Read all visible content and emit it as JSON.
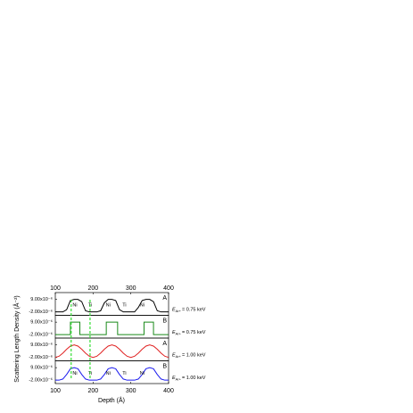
{
  "chart_data": {
    "type": "line",
    "xlabel": "Depth (Å)",
    "ylabel": "Scattering Length Density (Å⁻²)",
    "xlim": [
      100,
      400
    ],
    "xticks": [
      100,
      200,
      300,
      400
    ],
    "vlines": {
      "color": "#33dd33",
      "x": [
        142,
        192
      ]
    },
    "panels": [
      {
        "tag": "A",
        "color": "#000000",
        "x": [
          100,
          110,
          120,
          130,
          140,
          150,
          160,
          170,
          180,
          190,
          200,
          210,
          220,
          230,
          240,
          250,
          260,
          270,
          280,
          290,
          300,
          310,
          320,
          330,
          340,
          350,
          360,
          370,
          380,
          390,
          400
        ],
        "values": [
          -2e-06,
          -2e-06,
          -2e-06,
          0,
          8e-06,
          9e-06,
          9e-06,
          7e-06,
          -1e-06,
          -2e-06,
          -2e-06,
          -2e-06,
          -1e-06,
          6e-06,
          9e-06,
          9e-06,
          8e-06,
          0,
          -2e-06,
          -2e-06,
          -2e-06,
          -2e-06,
          2e-06,
          8e-06,
          9e-06,
          9e-06,
          7e-06,
          -1e-06,
          -2e-06,
          -2e-06,
          -2e-06
        ],
        "ylim": [
          -5e-06,
          1.5e-05
        ],
        "yticks": [
          {
            "value": 9e-06,
            "label": "9.00x10⁻⁶"
          },
          {
            "value": -2e-06,
            "label": "-2.00x10⁻⁶"
          }
        ],
        "layer_labels": [
          "Ni",
          "Ti",
          "Ni",
          "Ti",
          "Ni"
        ],
        "annotation": {
          "symbol": "E",
          "subscript": "Ar+",
          "text": "= 0.75 keV",
          "color": "#000000"
        }
      },
      {
        "tag": "B",
        "color": "#1a8a1a",
        "x": [
          100,
          140,
          140,
          165,
          165,
          235,
          235,
          265,
          265,
          335,
          335,
          360,
          360,
          400
        ],
        "values": [
          -2e-06,
          -2e-06,
          9e-06,
          9e-06,
          -2e-06,
          -2e-06,
          9e-06,
          9e-06,
          -2e-06,
          -2e-06,
          9e-06,
          9e-06,
          -2e-06,
          -2e-06
        ],
        "ylim": [
          -5e-06,
          1.5e-05
        ],
        "yticks": [
          {
            "value": 9e-06,
            "label": "9.00x10⁻⁶"
          },
          {
            "value": -2e-06,
            "label": "-2.00x10⁻⁶"
          }
        ],
        "layer_labels": [],
        "annotation": {
          "symbol": "E",
          "subscript": "Ar+",
          "text": "= 0.75 keV",
          "color": "#1a8a1a"
        }
      },
      {
        "tag": "A",
        "color": "#e02020",
        "x": [
          100,
          110,
          120,
          130,
          140,
          150,
          160,
          170,
          180,
          190,
          200,
          210,
          220,
          230,
          240,
          250,
          260,
          270,
          280,
          290,
          300,
          310,
          320,
          330,
          340,
          350,
          360,
          370,
          380,
          390,
          400
        ],
        "values": [
          -2e-06,
          -9.5e-07,
          1.8e-06,
          5.2e-06,
          7.95e-06,
          9e-06,
          7.95e-06,
          5.2e-06,
          1.8e-06,
          -9.5e-07,
          -2e-06,
          -9.5e-07,
          1.8e-06,
          5.2e-06,
          7.95e-06,
          9e-06,
          7.95e-06,
          5.2e-06,
          1.8e-06,
          -9.5e-07,
          -2e-06,
          -9.5e-07,
          1.8e-06,
          5.2e-06,
          7.95e-06,
          9e-06,
          7.95e-06,
          5.2e-06,
          1.8e-06,
          -9.5e-07,
          -2e-06
        ],
        "ylim": [
          -5e-06,
          1.5e-05
        ],
        "yticks": [
          {
            "value": 9e-06,
            "label": "9.00x10⁻⁶"
          },
          {
            "value": -2e-06,
            "label": "-2.00x10⁻⁶"
          }
        ],
        "layer_labels": [],
        "annotation": {
          "symbol": "E",
          "subscript": "Ar+",
          "text": "= 1.00 keV",
          "color": "#e02020"
        }
      },
      {
        "tag": "B",
        "color": "#1a1aee",
        "x": [
          100,
          110,
          120,
          130,
          140,
          150,
          160,
          170,
          180,
          190,
          200,
          210,
          220,
          230,
          240,
          250,
          260,
          270,
          280,
          290,
          300,
          310,
          320,
          330,
          340,
          350,
          360,
          370,
          380,
          390,
          400
        ],
        "values": [
          -2e-06,
          -2e-06,
          -1e-06,
          3e-06,
          8e-06,
          9e-06,
          8e-06,
          3e-06,
          -1e-06,
          -2e-06,
          -2e-06,
          -2e-06,
          -1e-06,
          3e-06,
          8e-06,
          9e-06,
          8e-06,
          3e-06,
          -1e-06,
          -2e-06,
          -2e-06,
          -2e-06,
          -1e-06,
          3e-06,
          8e-06,
          9e-06,
          8e-06,
          3e-06,
          -1e-06,
          -2e-06,
          -2e-06
        ],
        "ylim": [
          -5e-06,
          1.5e-05
        ],
        "yticks": [
          {
            "value": 9e-06,
            "label": "9.00x10⁻⁶"
          },
          {
            "value": -2e-06,
            "label": "-2.00x10⁻⁶"
          }
        ],
        "layer_labels": [
          "Ni",
          "Ti",
          "Ni",
          "Ti",
          "Ni"
        ],
        "annotation": {
          "symbol": "E",
          "subscript": "Ar+",
          "text": "= 1.00 keV",
          "color": "#1a1aee"
        }
      }
    ]
  }
}
